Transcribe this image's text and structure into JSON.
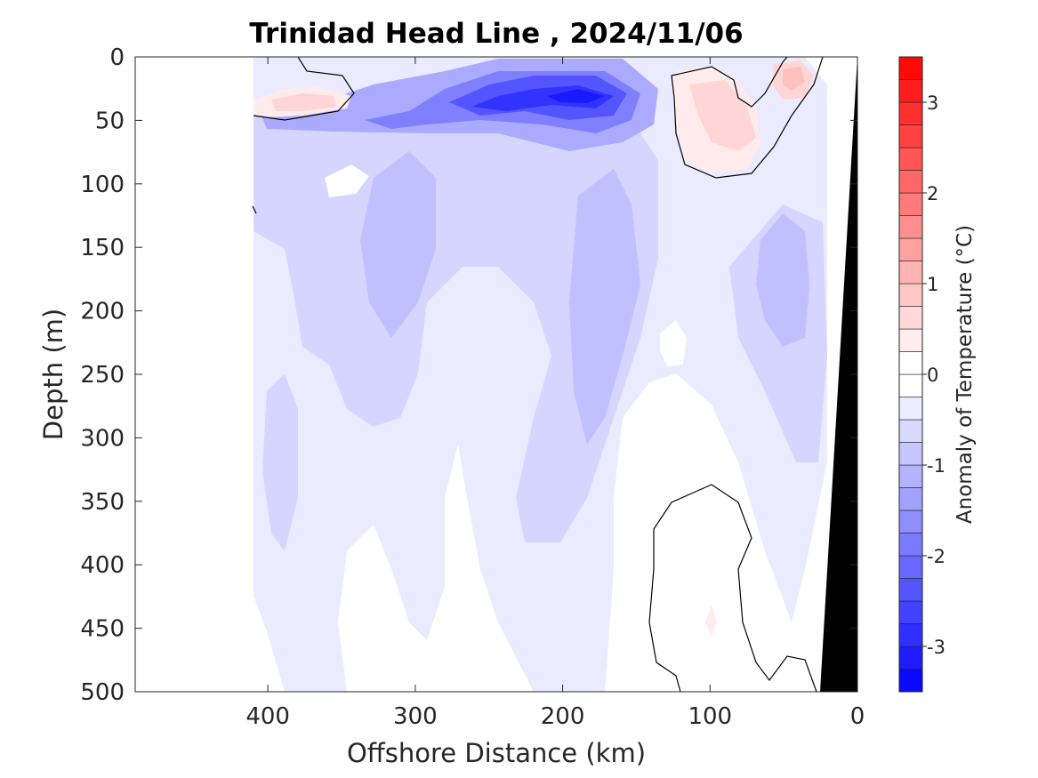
{
  "chart_data": {
    "type": "heatmap",
    "title": "Trinidad Head Line , 2024/11/06",
    "xlabel": "Offshore Distance (km)",
    "ylabel": "Depth (m)",
    "xlim": [
      490,
      0
    ],
    "ylim": [
      0,
      500
    ],
    "x_reversed": true,
    "y_reversed": true,
    "x_ticks": [
      400,
      300,
      200,
      100,
      0
    ],
    "y_ticks": [
      0,
      50,
      100,
      150,
      200,
      250,
      300,
      350,
      400,
      450,
      500
    ],
    "colorbar": {
      "label": "Anomaly of Temperature (°C)",
      "range": [
        -3.5,
        3.5
      ],
      "step": 0.25,
      "ticks": [
        -3,
        -2,
        -1,
        0,
        1,
        2,
        3
      ],
      "neg_color": "#0000ff",
      "pos_color": "#ff0000",
      "zero_color": "#ffffff"
    },
    "data_extent_x": [
      410,
      0
    ],
    "land_mask_color": "#000000",
    "contour_level": 0,
    "field_samples": [
      {
        "x": 190,
        "y": 30,
        "value": -2.8
      },
      {
        "x": 250,
        "y": 40,
        "value": -2.3
      },
      {
        "x": 320,
        "y": 50,
        "value": -1.5
      },
      {
        "x": 380,
        "y": 35,
        "value": 0.8
      },
      {
        "x": 40,
        "y": 15,
        "value": 1.0
      },
      {
        "x": 80,
        "y": 50,
        "value": 0.6
      },
      {
        "x": 320,
        "y": 200,
        "value": -1.0
      },
      {
        "x": 200,
        "y": 250,
        "value": -1.0
      },
      {
        "x": 60,
        "y": 200,
        "value": -1.0
      },
      {
        "x": 360,
        "y": 450,
        "value": -0.4
      },
      {
        "x": 90,
        "y": 400,
        "value": 0.0
      },
      {
        "x": 100,
        "y": 450,
        "value": 0.3
      }
    ]
  }
}
